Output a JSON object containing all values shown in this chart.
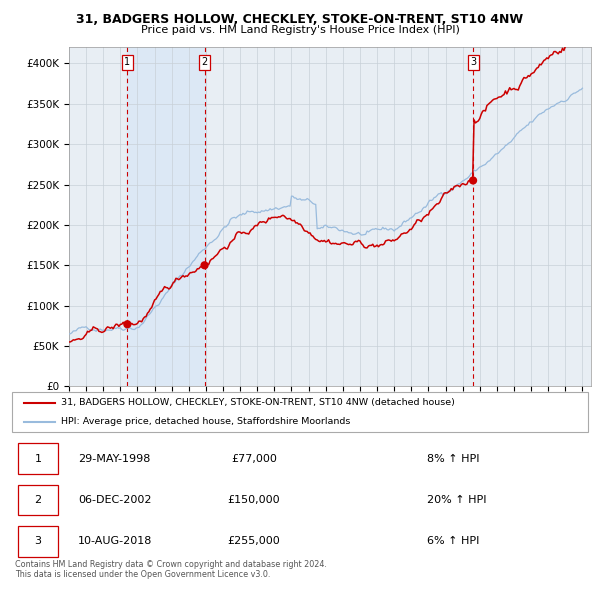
{
  "title_line1": "31, BADGERS HOLLOW, CHECKLEY, STOKE-ON-TRENT, ST10 4NW",
  "title_line2": "Price paid vs. HM Land Registry's House Price Index (HPI)",
  "ylim": [
    0,
    420000
  ],
  "yticks": [
    0,
    50000,
    100000,
    150000,
    200000,
    250000,
    300000,
    350000,
    400000
  ],
  "ytick_labels": [
    "£0",
    "£50K",
    "£100K",
    "£150K",
    "£200K",
    "£250K",
    "£300K",
    "£350K",
    "£400K"
  ],
  "x_start_year": 1995,
  "x_end_year": 2025,
  "sale_dates_float": [
    1998.41,
    2002.92,
    2018.61
  ],
  "sale_prices": [
    77000,
    150000,
    255000
  ],
  "sale_labels": [
    "1",
    "2",
    "3"
  ],
  "sale_date_labels": [
    "29-MAY-1998",
    "06-DEC-2002",
    "10-AUG-2018"
  ],
  "sale_price_labels": [
    "£77,000",
    "£150,000",
    "£255,000"
  ],
  "sale_pct_labels": [
    "8% ↑ HPI",
    "20% ↑ HPI",
    "6% ↑ HPI"
  ],
  "hpi_color": "#99bbdd",
  "price_color": "#cc0000",
  "dot_color": "#cc0000",
  "shade_color": "#dce8f5",
  "grid_color": "#c8d0d8",
  "dashed_color": "#cc0000",
  "legend_line1": "31, BADGERS HOLLOW, CHECKLEY, STOKE-ON-TRENT, ST10 4NW (detached house)",
  "legend_line2": "HPI: Average price, detached house, Staffordshire Moorlands",
  "footer": "Contains HM Land Registry data © Crown copyright and database right 2024.\nThis data is licensed under the Open Government Licence v3.0.",
  "box_color": "#cc0000",
  "plot_bg_color": "#e8eef4"
}
